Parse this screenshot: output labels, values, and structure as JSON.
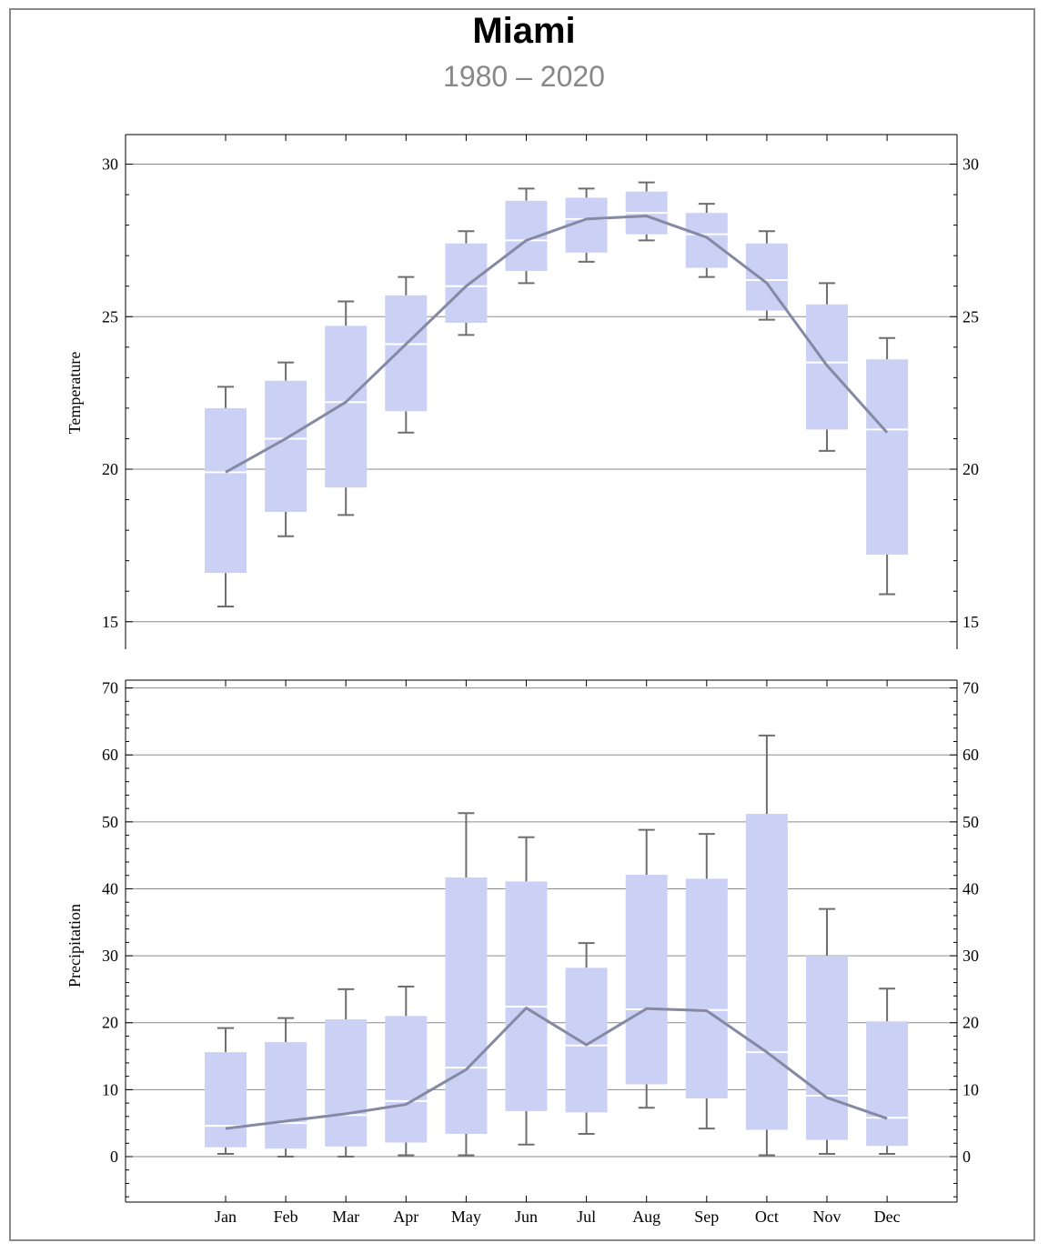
{
  "title": "Miami",
  "subtitle": "1980 – 2020",
  "chart_data": [
    {
      "type": "box",
      "ylabel": "Temperature",
      "ylim": [
        14.1,
        30.9
      ],
      "yticks": [
        15,
        20,
        25,
        30
      ],
      "grid": "horizontal at major ticks",
      "categories": [
        "Jan",
        "Feb",
        "Mar",
        "Apr",
        "May",
        "Jun",
        "Jul",
        "Aug",
        "Sep",
        "Oct",
        "Nov",
        "Dec"
      ],
      "boxes": [
        {
          "whisker_low": 15.5,
          "q1": 16.6,
          "median": 19.9,
          "q3": 22.0,
          "whisker_high": 22.7
        },
        {
          "whisker_low": 17.8,
          "q1": 18.6,
          "median": 21.0,
          "q3": 22.9,
          "whisker_high": 23.5
        },
        {
          "whisker_low": 18.5,
          "q1": 19.4,
          "median": 22.2,
          "q3": 24.7,
          "whisker_high": 25.5
        },
        {
          "whisker_low": 21.2,
          "q1": 21.9,
          "median": 24.1,
          "q3": 25.7,
          "whisker_high": 26.3
        },
        {
          "whisker_low": 24.4,
          "q1": 24.8,
          "median": 26.0,
          "q3": 27.4,
          "whisker_high": 27.8
        },
        {
          "whisker_low": 26.1,
          "q1": 26.5,
          "median": 27.5,
          "q3": 28.8,
          "whisker_high": 29.2
        },
        {
          "whisker_low": 26.8,
          "q1": 27.1,
          "median": 28.2,
          "q3": 28.9,
          "whisker_high": 29.2
        },
        {
          "whisker_low": 27.5,
          "q1": 27.7,
          "median": 28.4,
          "q3": 29.1,
          "whisker_high": 29.4
        },
        {
          "whisker_low": 26.3,
          "q1": 26.6,
          "median": 27.7,
          "q3": 28.4,
          "whisker_high": 28.7
        },
        {
          "whisker_low": 24.9,
          "q1": 25.2,
          "median": 26.2,
          "q3": 27.4,
          "whisker_high": 27.8
        },
        {
          "whisker_low": 20.6,
          "q1": 21.3,
          "median": 23.5,
          "q3": 25.4,
          "whisker_high": 26.1
        },
        {
          "whisker_low": 15.9,
          "q1": 17.2,
          "median": 21.3,
          "q3": 23.6,
          "whisker_high": 24.3
        }
      ],
      "mean_line": [
        19.9,
        21.0,
        22.2,
        24.1,
        26.0,
        27.5,
        28.2,
        28.3,
        27.6,
        26.1,
        23.4,
        21.2
      ]
    },
    {
      "type": "box",
      "ylabel": "Precipitation",
      "ylim": [
        -6.5,
        70
      ],
      "yticks": [
        0,
        10,
        20,
        30,
        40,
        50,
        60,
        70
      ],
      "grid": "horizontal at major ticks",
      "categories": [
        "Jan",
        "Feb",
        "Mar",
        "Apr",
        "May",
        "Jun",
        "Jul",
        "Aug",
        "Sep",
        "Oct",
        "Nov",
        "Dec"
      ],
      "boxes": [
        {
          "whisker_low": 0.4,
          "q1": 1.4,
          "median": 4.6,
          "q3": 15.6,
          "whisker_high": 19.2
        },
        {
          "whisker_low": 0.0,
          "q1": 1.2,
          "median": 5.0,
          "q3": 17.1,
          "whisker_high": 20.7
        },
        {
          "whisker_low": 0.0,
          "q1": 1.5,
          "median": 6.2,
          "q3": 20.5,
          "whisker_high": 25.0
        },
        {
          "whisker_low": 0.2,
          "q1": 2.1,
          "median": 8.3,
          "q3": 21.0,
          "whisker_high": 25.4
        },
        {
          "whisker_low": 0.2,
          "q1": 3.4,
          "median": 13.3,
          "q3": 41.7,
          "whisker_high": 51.3
        },
        {
          "whisker_low": 1.8,
          "q1": 6.8,
          "median": 22.4,
          "q3": 41.1,
          "whisker_high": 47.7
        },
        {
          "whisker_low": 3.4,
          "q1": 6.6,
          "median": 16.6,
          "q3": 28.2,
          "whisker_high": 31.9
        },
        {
          "whisker_low": 7.3,
          "q1": 10.8,
          "median": 22.0,
          "q3": 42.1,
          "whisker_high": 48.8
        },
        {
          "whisker_low": 4.2,
          "q1": 8.7,
          "median": 21.9,
          "q3": 41.5,
          "whisker_high": 48.2
        },
        {
          "whisker_low": 0.2,
          "q1": 4.0,
          "median": 15.6,
          "q3": 51.2,
          "whisker_high": 62.9
        },
        {
          "whisker_low": 0.4,
          "q1": 2.5,
          "median": 9.1,
          "q3": 30.0,
          "whisker_high": 37.0
        },
        {
          "whisker_low": 0.4,
          "q1": 1.6,
          "median": 5.8,
          "q3": 20.2,
          "whisker_high": 25.1
        }
      ],
      "mean_line": [
        4.2,
        5.3,
        6.4,
        7.8,
        13.0,
        22.2,
        16.7,
        22.1,
        21.8,
        15.6,
        8.8,
        5.7
      ]
    }
  ],
  "colors": {
    "box_fill": "#cbd1f5",
    "median": "#ffffff",
    "whisker": "#6e6e6e",
    "mean_line": "#8589a3",
    "grid": "#8c8c8c",
    "frame": "#8a8a8a"
  }
}
